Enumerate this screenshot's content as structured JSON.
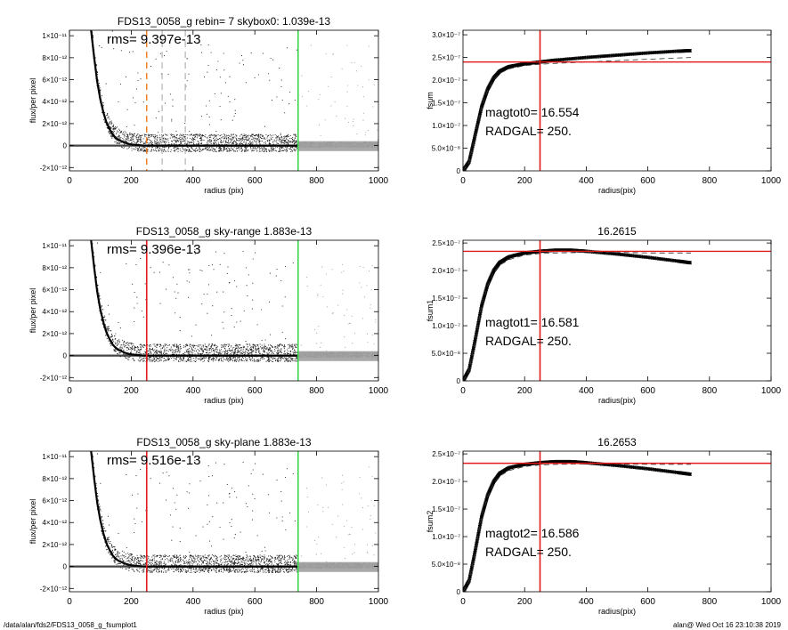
{
  "footer": {
    "path": "/data/alan/fds2/FDS13_0058_g_fsumplot1",
    "stamp": "alan@  Wed Oct 16 23:10:38 2019"
  },
  "colors": {
    "scatter_dark": "#1a1a1a",
    "scatter_grey": "#9a9a9a",
    "profile": "#000000",
    "red_line": "#e31a1c",
    "green_line": "#3cd64a",
    "orange_dash": "#f07a1a",
    "grey_dash": "#bdbdbd",
    "axis": "#000000"
  },
  "chart_data": [
    {
      "id": "profile-1",
      "type": "scatter",
      "title": "FDS13_0058_g rebin= 7    skybox0:  1.039e-13",
      "annotations": [
        "rms= 9.397e-13"
      ],
      "xlabel": "radius (pix)",
      "ylabel": "flux/per pixel",
      "xlim": [
        0,
        1000
      ],
      "ylim": [
        -2.3e-12,
        1.05e-11
      ],
      "xticks": [
        0,
        200,
        400,
        600,
        800,
        1000
      ],
      "xtick_labels": [
        "0",
        "200",
        "400",
        "600",
        "800",
        "1000"
      ],
      "yticks": [
        -2e-12,
        0,
        2e-12,
        4e-12,
        6e-12,
        8e-12,
        1e-11
      ],
      "ytick_labels": [
        "-2×10⁻¹²",
        "0",
        "2×10⁻¹²",
        "4×10⁻¹²",
        "6×10⁻¹²",
        "8×10⁻¹²",
        "1×10⁻¹¹"
      ],
      "vlines": [
        {
          "x": 250,
          "color": "orange",
          "style": "dashed"
        },
        {
          "x": 300,
          "color": "grey",
          "style": "dashed"
        },
        {
          "x": 375,
          "color": "grey",
          "style": "dashed"
        },
        {
          "x": 740,
          "color": "green",
          "style": "solid"
        }
      ],
      "profile": {
        "x": [
          70,
          80,
          90,
          100,
          110,
          120,
          130,
          140,
          150,
          160,
          180,
          200,
          240,
          300,
          400,
          500,
          600,
          700,
          740
        ],
        "y": [
          1.05e-11,
          8e-12,
          5.8e-12,
          4.2e-12,
          3e-12,
          2.1e-12,
          1.5e-12,
          1e-12,
          7e-13,
          5e-13,
          2.5e-13,
          1e-13,
          0,
          0,
          0,
          0,
          0,
          0,
          0
        ]
      }
    },
    {
      "id": "profile-2",
      "type": "scatter",
      "title": "FDS13_0058_g sky-range  1.883e-13",
      "annotations": [
        "rms= 9.396e-13"
      ],
      "xlabel": "radius (pix)",
      "ylabel": "flux/per pixel",
      "xlim": [
        0,
        1000
      ],
      "ylim": [
        -2.3e-12,
        1.05e-11
      ],
      "xticks": [
        0,
        200,
        400,
        600,
        800,
        1000
      ],
      "xtick_labels": [
        "0",
        "200",
        "400",
        "600",
        "800",
        "1000"
      ],
      "yticks": [
        -2e-12,
        0,
        2e-12,
        4e-12,
        6e-12,
        8e-12,
        1e-11
      ],
      "ytick_labels": [
        "-2×10⁻¹²",
        "0",
        "2×10⁻¹²",
        "4×10⁻¹²",
        "6×10⁻¹²",
        "8×10⁻¹²",
        "1×10⁻¹¹"
      ],
      "vlines": [
        {
          "x": 250,
          "color": "red",
          "style": "solid"
        },
        {
          "x": 740,
          "color": "green",
          "style": "solid"
        }
      ],
      "profile": {
        "x": [
          70,
          80,
          90,
          100,
          110,
          120,
          130,
          140,
          150,
          160,
          180,
          200,
          240,
          300,
          400,
          500,
          600,
          700,
          740
        ],
        "y": [
          1.05e-11,
          8e-12,
          5.8e-12,
          4.2e-12,
          3e-12,
          2.1e-12,
          1.5e-12,
          1e-12,
          7e-13,
          5e-13,
          2.5e-13,
          1e-13,
          0,
          0,
          0,
          0,
          0,
          0,
          0
        ]
      }
    },
    {
      "id": "profile-3",
      "type": "scatter",
      "title": "FDS13_0058_g sky-plane  1.883e-13",
      "annotations": [
        "rms= 9.516e-13"
      ],
      "xlabel": "radius (pix)",
      "ylabel": "flux/per pixel",
      "xlim": [
        0,
        1000
      ],
      "ylim": [
        -2.3e-12,
        1.05e-11
      ],
      "xticks": [
        0,
        200,
        400,
        600,
        800,
        1000
      ],
      "xtick_labels": [
        "0",
        "200",
        "400",
        "600",
        "800",
        "1000"
      ],
      "yticks": [
        -2e-12,
        0,
        2e-12,
        4e-12,
        6e-12,
        8e-12,
        1e-11
      ],
      "ytick_labels": [
        "-2×10⁻¹²",
        "0",
        "2×10⁻¹²",
        "4×10⁻¹²",
        "6×10⁻¹²",
        "8×10⁻¹²",
        "1×10⁻¹¹"
      ],
      "vlines": [
        {
          "x": 250,
          "color": "red",
          "style": "solid"
        },
        {
          "x": 740,
          "color": "green",
          "style": "solid"
        }
      ],
      "profile": {
        "x": [
          70,
          80,
          90,
          100,
          110,
          120,
          130,
          140,
          150,
          160,
          180,
          200,
          240,
          300,
          400,
          500,
          600,
          700,
          740
        ],
        "y": [
          1.05e-11,
          8e-12,
          5.8e-12,
          4.2e-12,
          3e-12,
          2.1e-12,
          1.5e-12,
          1e-12,
          7e-13,
          5e-13,
          2.5e-13,
          1e-13,
          0,
          0,
          0,
          0,
          0,
          0,
          0
        ]
      }
    },
    {
      "id": "growth-1",
      "type": "line",
      "title": "",
      "annotations": [
        "magtot0=  16.554",
        "RADGAL=    250."
      ],
      "xlabel": "radius(pix)",
      "ylabel": "fsum",
      "xlim": [
        0,
        1000
      ],
      "ylim": [
        0,
        3.1e-07
      ],
      "xticks": [
        0,
        200,
        400,
        600,
        800,
        1000
      ],
      "xtick_labels": [
        "0",
        "200",
        "400",
        "600",
        "800",
        "1000"
      ],
      "yticks": [
        0,
        5e-08,
        1e-07,
        1.5e-07,
        2e-07,
        2.5e-07,
        3e-07
      ],
      "ytick_labels": [
        "0",
        "5.0×10⁻⁸",
        "1.0×10⁻⁷",
        "1.5×10⁻⁷",
        "2.0×10⁻⁷",
        "2.5×10⁻⁷",
        "3.0×10⁻⁷"
      ],
      "vlines": [
        {
          "x": 250,
          "color": "red",
          "style": "solid"
        }
      ],
      "hlines": [
        {
          "y": 2.4e-07,
          "color": "red",
          "style": "solid"
        }
      ],
      "series": [
        {
          "style": "markers",
          "x": [
            0,
            20,
            40,
            60,
            80,
            100,
            120,
            150,
            200,
            250,
            300,
            400,
            500,
            600,
            700,
            740
          ],
          "y": [
            0,
            2e-08,
            8e-08,
            1.4e-07,
            1.8e-07,
            2.05e-07,
            2.2e-07,
            2.3e-07,
            2.36e-07,
            2.4e-07,
            2.44e-07,
            2.5e-07,
            2.55e-07,
            2.6e-07,
            2.64e-07,
            2.65e-07
          ]
        },
        {
          "style": "dashed",
          "x": [
            0,
            20,
            40,
            60,
            80,
            100,
            120,
            150,
            200,
            250,
            300,
            400,
            500,
            600,
            700,
            740
          ],
          "y": [
            0,
            2e-08,
            8e-08,
            1.4e-07,
            1.78e-07,
            2.02e-07,
            2.15e-07,
            2.25e-07,
            2.32e-07,
            2.35e-07,
            2.37e-07,
            2.4e-07,
            2.43e-07,
            2.46e-07,
            2.49e-07,
            2.5e-07
          ]
        }
      ]
    },
    {
      "id": "growth-2",
      "type": "line",
      "title": "16.2615",
      "annotations": [
        "magtot1=  16.581",
        "RADGAL=    250."
      ],
      "xlabel": "radius(pix)",
      "ylabel": "fsum1",
      "xlim": [
        0,
        1000
      ],
      "ylim": [
        0,
        2.55e-07
      ],
      "xticks": [
        0,
        200,
        400,
        600,
        800,
        1000
      ],
      "xtick_labels": [
        "0",
        "200",
        "400",
        "600",
        "800",
        "1000"
      ],
      "yticks": [
        0,
        5e-08,
        1e-07,
        1.5e-07,
        2e-07,
        2.5e-07
      ],
      "ytick_labels": [
        "0",
        "5.0×10⁻⁸",
        "1.0×10⁻⁷",
        "1.5×10⁻⁷",
        "2.0×10⁻⁷",
        "2.5×10⁻⁷"
      ],
      "vlines": [
        {
          "x": 250,
          "color": "red",
          "style": "solid"
        }
      ],
      "hlines": [
        {
          "y": 2.35e-07,
          "color": "red",
          "style": "solid"
        }
      ],
      "series": [
        {
          "style": "markers",
          "x": [
            0,
            20,
            40,
            60,
            80,
            100,
            120,
            150,
            200,
            250,
            300,
            350,
            400,
            500,
            600,
            700,
            740
          ],
          "y": [
            0,
            2e-08,
            7.5e-08,
            1.35e-07,
            1.75e-07,
            2e-07,
            2.15e-07,
            2.25e-07,
            2.32e-07,
            2.35e-07,
            2.37e-07,
            2.37e-07,
            2.35e-07,
            2.3e-07,
            2.24e-07,
            2.17e-07,
            2.14e-07
          ]
        },
        {
          "style": "dashed",
          "x": [
            0,
            20,
            40,
            60,
            80,
            100,
            120,
            150,
            200,
            250,
            300,
            400,
            500,
            600,
            700,
            740
          ],
          "y": [
            0,
            2e-08,
            7.5e-08,
            1.35e-07,
            1.73e-07,
            1.97e-07,
            2.1e-07,
            2.2e-07,
            2.28e-07,
            2.31e-07,
            2.32e-07,
            2.33e-07,
            2.33e-07,
            2.32e-07,
            2.32e-07,
            2.32e-07
          ]
        }
      ]
    },
    {
      "id": "growth-3",
      "type": "line",
      "title": "16.2653",
      "annotations": [
        "magtot2=  16.586",
        "RADGAL=    250."
      ],
      "xlabel": "radius(pix)",
      "ylabel": "fsum2",
      "xlim": [
        0,
        1000
      ],
      "ylim": [
        0,
        2.55e-07
      ],
      "xticks": [
        0,
        200,
        400,
        600,
        800,
        1000
      ],
      "xtick_labels": [
        "0",
        "200",
        "400",
        "600",
        "800",
        "1000"
      ],
      "yticks": [
        0,
        5e-08,
        1e-07,
        1.5e-07,
        2e-07,
        2.5e-07
      ],
      "ytick_labels": [
        "0",
        "5.0×10⁻⁸",
        "1.0×10⁻⁷",
        "1.5×10⁻⁷",
        "2.0×10⁻⁷",
        "2.5×10⁻⁷"
      ],
      "vlines": [
        {
          "x": 250,
          "color": "red",
          "style": "solid"
        }
      ],
      "hlines": [
        {
          "y": 2.33e-07,
          "color": "red",
          "style": "solid"
        }
      ],
      "series": [
        {
          "style": "markers",
          "x": [
            0,
            20,
            40,
            60,
            80,
            100,
            120,
            150,
            200,
            250,
            300,
            350,
            400,
            500,
            600,
            700,
            740
          ],
          "y": [
            0,
            2e-08,
            7.5e-08,
            1.35e-07,
            1.75e-07,
            2e-07,
            2.15e-07,
            2.25e-07,
            2.31e-07,
            2.34e-07,
            2.36e-07,
            2.36e-07,
            2.34e-07,
            2.29e-07,
            2.23e-07,
            2.16e-07,
            2.13e-07
          ]
        },
        {
          "style": "dashed",
          "x": [
            0,
            20,
            40,
            60,
            80,
            100,
            120,
            150,
            200,
            250,
            300,
            400,
            500,
            600,
            700,
            740
          ],
          "y": [
            0,
            2e-08,
            7.5e-08,
            1.35e-07,
            1.73e-07,
            1.97e-07,
            2.1e-07,
            2.2e-07,
            2.27e-07,
            2.3e-07,
            2.31e-07,
            2.32e-07,
            2.32e-07,
            2.31e-07,
            2.31e-07,
            2.31e-07
          ]
        }
      ]
    }
  ]
}
